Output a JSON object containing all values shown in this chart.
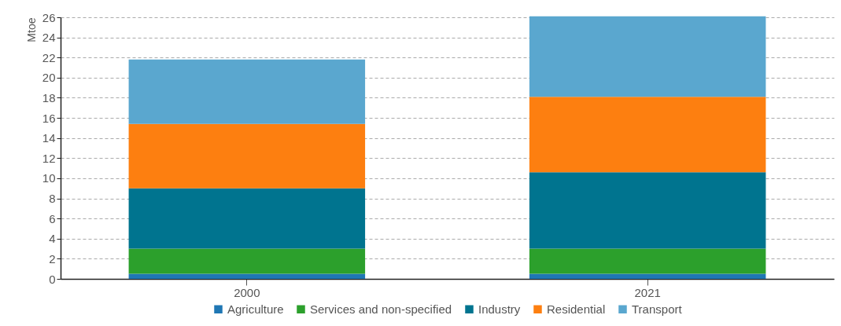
{
  "chart_data": {
    "type": "bar",
    "stacked": true,
    "ylabel": "Mtoe",
    "categories": [
      "2000",
      "2021"
    ],
    "series": [
      {
        "name": "Agriculture",
        "color": "#1f77b4",
        "values": [
          0.5,
          0.5
        ]
      },
      {
        "name": "Services and non-specified",
        "color": "#2ca02c",
        "values": [
          2.5,
          2.5
        ]
      },
      {
        "name": "Industry",
        "color": "#00748f",
        "values": [
          6.0,
          7.6
        ]
      },
      {
        "name": "Residential",
        "color": "#fd7f10",
        "values": [
          6.4,
          7.5
        ]
      },
      {
        "name": "Transport",
        "color": "#5aa7cf",
        "values": [
          6.4,
          8.0
        ]
      }
    ],
    "ylim": [
      0,
      26
    ],
    "yticks": [
      0,
      2,
      4,
      6,
      8,
      10,
      12,
      14,
      16,
      18,
      20,
      22,
      24,
      26
    ],
    "grid": "y",
    "legend": "bottom"
  }
}
